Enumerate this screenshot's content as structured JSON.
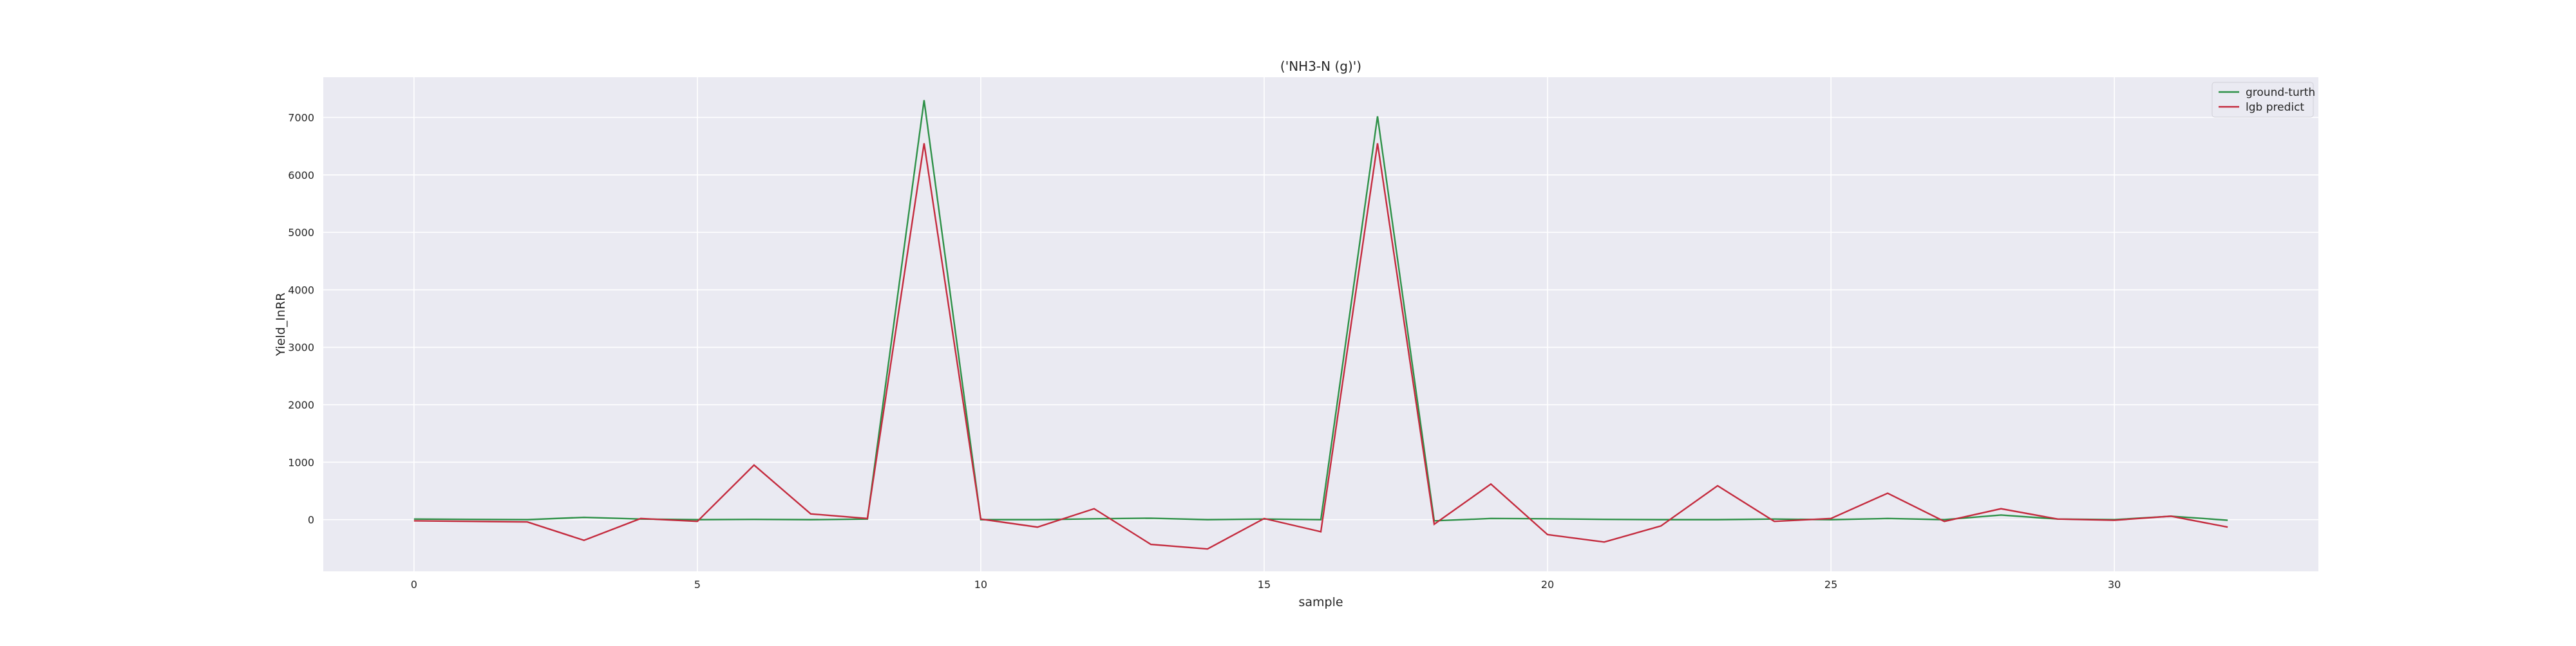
{
  "chart_data": {
    "type": "line",
    "title": "('NH3-N (g)')",
    "xlabel": "sample",
    "ylabel": "Yield_InRR",
    "xlim": [
      -1.6,
      33.6
    ],
    "ylim": [
      -900,
      7700
    ],
    "x_ticks": [
      0,
      5,
      10,
      15,
      20,
      25,
      30
    ],
    "y_ticks": [
      0,
      1000,
      2000,
      3000,
      4000,
      5000,
      6000,
      7000
    ],
    "grid": true,
    "legend_position": "top-right",
    "background_color": "#eaeaf2",
    "grid_color": "#ffffff",
    "x": [
      0,
      1,
      2,
      3,
      4,
      5,
      6,
      7,
      8,
      9,
      10,
      11,
      12,
      13,
      14,
      15,
      16,
      17,
      18,
      19,
      20,
      21,
      22,
      23,
      24,
      25,
      26,
      27,
      28,
      29,
      30,
      31,
      32
    ],
    "series": [
      {
        "name": "ground-turth",
        "color": "#2e9148",
        "values": [
          10,
          5,
          0,
          40,
          10,
          0,
          5,
          0,
          10,
          7300,
          0,
          0,
          15,
          25,
          0,
          10,
          0,
          7020,
          -20,
          20,
          15,
          5,
          0,
          0,
          10,
          0,
          20,
          0,
          80,
          10,
          0,
          60,
          -10
        ]
      },
      {
        "name": "lgb predict",
        "color": "#c42b3e",
        "values": [
          -20,
          -30,
          -40,
          -360,
          20,
          -30,
          950,
          100,
          20,
          6550,
          10,
          -130,
          190,
          -430,
          -510,
          20,
          -210,
          6550,
          -80,
          620,
          -260,
          -390,
          -110,
          590,
          -30,
          20,
          460,
          -30,
          190,
          10,
          -10,
          60,
          -130
        ]
      }
    ]
  }
}
